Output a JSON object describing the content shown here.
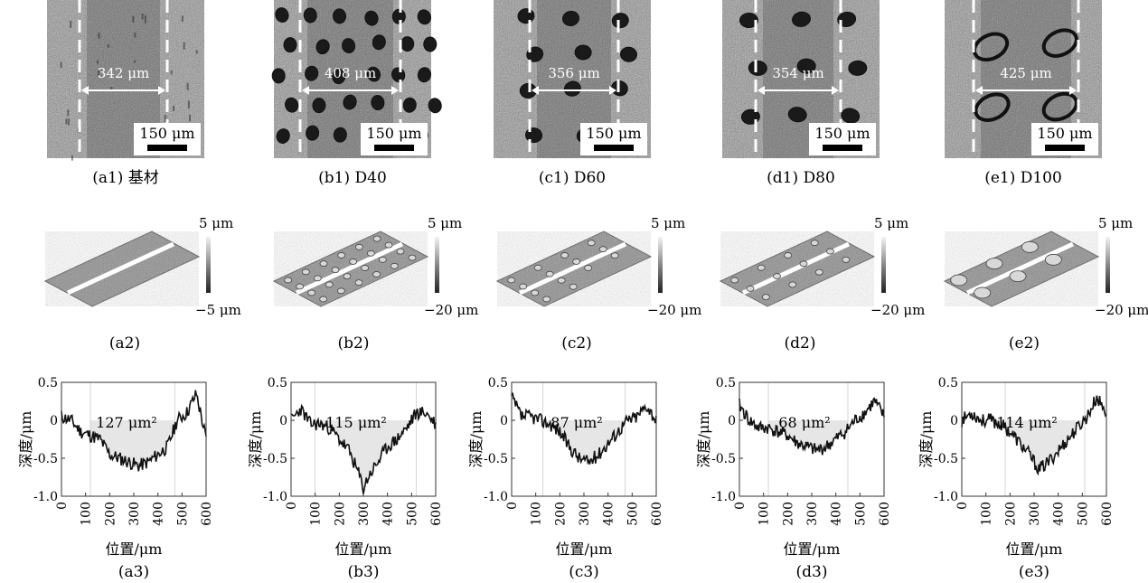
{
  "row1": {
    "scale_label": "150 μm",
    "panels": [
      {
        "caption": "(a1) 基材",
        "width_label": "342 μm",
        "pits": "none"
      },
      {
        "caption": "(b1) D40",
        "width_label": "408 μm",
        "pits": "dense"
      },
      {
        "caption": "(c1) D60",
        "width_label": "356 μm",
        "pits": "medium"
      },
      {
        "caption": "(d1) D80",
        "width_label": "354 μm",
        "pits": "sparse"
      },
      {
        "caption": "(e1) D100",
        "width_label": "425 μm",
        "pits": "large"
      }
    ]
  },
  "row2": {
    "panels": [
      {
        "caption": "(a2)",
        "top": "5 μm",
        "bottom": "−5 μm"
      },
      {
        "caption": "(b2)",
        "top": "5 μm",
        "bottom": "−20 μm"
      },
      {
        "caption": "(c2)",
        "top": "5 μm",
        "bottom": "−20 μm"
      },
      {
        "caption": "(d2)",
        "top": "5 μm",
        "bottom": "−20 μm"
      },
      {
        "caption": "(e2)",
        "top": "5 μm",
        "bottom": "−20 μm"
      }
    ]
  },
  "chart_data": [
    {
      "type": "line",
      "caption": "(a3)",
      "annotation": "127 μm²",
      "xlabel": "位置/μm",
      "ylabel": "深度/μm",
      "xlim": [
        0,
        600
      ],
      "ylim": [
        -1.0,
        0.5
      ],
      "xticks": [
        0,
        100,
        200,
        300,
        400,
        500,
        600
      ],
      "yticks": [
        0.5,
        0,
        -0.5,
        -1.0
      ],
      "fill_range": [
        120,
        470
      ],
      "seed": 11,
      "x": [
        0,
        40,
        80,
        120,
        160,
        200,
        240,
        280,
        320,
        360,
        400,
        440,
        480,
        520,
        560,
        600
      ],
      "y": [
        0.05,
        0.0,
        -0.15,
        -0.2,
        -0.25,
        -0.45,
        -0.5,
        -0.55,
        -0.6,
        -0.55,
        -0.45,
        -0.35,
        0.0,
        0.1,
        0.35,
        -0.25
      ]
    },
    {
      "type": "line",
      "caption": "(b3)",
      "annotation": "115 μm²",
      "xlabel": "位置/μm",
      "ylabel": "深度/μm",
      "xlim": [
        0,
        600
      ],
      "ylim": [
        -1.0,
        0.5
      ],
      "xticks": [
        0,
        100,
        200,
        300,
        400,
        500,
        600
      ],
      "yticks": [
        0.5,
        0,
        -0.5,
        -1.0
      ],
      "fill_range": [
        100,
        520
      ],
      "seed": 23,
      "x": [
        0,
        40,
        80,
        120,
        160,
        200,
        240,
        280,
        300,
        320,
        360,
        400,
        440,
        480,
        520,
        560,
        600
      ],
      "y": [
        0.0,
        0.15,
        -0.05,
        -0.05,
        -0.1,
        -0.25,
        -0.4,
        -0.7,
        -0.9,
        -0.75,
        -0.55,
        -0.35,
        -0.25,
        -0.1,
        0.1,
        0.1,
        -0.05
      ]
    },
    {
      "type": "line",
      "caption": "(c3)",
      "annotation": "87 μm²",
      "xlabel": "位置/μm",
      "ylabel": "深度/μm",
      "xlim": [
        0,
        600
      ],
      "ylim": [
        -1.0,
        0.5
      ],
      "xticks": [
        0,
        100,
        200,
        300,
        400,
        500,
        600
      ],
      "yticks": [
        0.5,
        0,
        -0.5,
        -1.0
      ],
      "fill_range": [
        130,
        470
      ],
      "seed": 37,
      "x": [
        0,
        40,
        80,
        120,
        160,
        200,
        240,
        280,
        320,
        360,
        400,
        440,
        480,
        520,
        560,
        600
      ],
      "y": [
        0.3,
        0.05,
        0.05,
        0.0,
        -0.05,
        -0.15,
        -0.35,
        -0.5,
        -0.55,
        -0.45,
        -0.3,
        -0.15,
        0.0,
        0.05,
        0.2,
        0.0
      ]
    },
    {
      "type": "line",
      "caption": "(d3)",
      "annotation": "68 μm²",
      "xlabel": "位置/μm",
      "ylabel": "深度/μm",
      "xlim": [
        0,
        600
      ],
      "ylim": [
        -1.0,
        0.5
      ],
      "xticks": [
        0,
        100,
        200,
        300,
        400,
        500,
        600
      ],
      "yticks": [
        0.5,
        0,
        -0.5,
        -1.0
      ],
      "fill_range": [
        120,
        450
      ],
      "seed": 41,
      "x": [
        0,
        40,
        80,
        120,
        160,
        200,
        240,
        280,
        320,
        360,
        400,
        440,
        480,
        520,
        560,
        600
      ],
      "y": [
        0.2,
        0.0,
        -0.1,
        -0.1,
        -0.15,
        -0.2,
        -0.3,
        -0.35,
        -0.4,
        -0.35,
        -0.25,
        -0.15,
        0.0,
        0.1,
        0.25,
        0.05
      ]
    },
    {
      "type": "line",
      "caption": "(e3)",
      "annotation": "114 μm²",
      "xlabel": "位置/μm",
      "ylabel": "深度/μm",
      "xlim": [
        0,
        600
      ],
      "ylim": [
        -1.0,
        0.5
      ],
      "xticks": [
        0,
        100,
        200,
        300,
        400,
        500,
        600
      ],
      "yticks": [
        0.5,
        0,
        -0.5,
        -1.0
      ],
      "fill_range": [
        180,
        510
      ],
      "seed": 53,
      "x": [
        0,
        40,
        80,
        120,
        160,
        200,
        240,
        280,
        320,
        360,
        400,
        440,
        480,
        520,
        560,
        600
      ],
      "y": [
        0.0,
        0.1,
        0.0,
        0.0,
        -0.05,
        -0.15,
        -0.3,
        -0.45,
        -0.65,
        -0.55,
        -0.4,
        -0.25,
        -0.1,
        0.05,
        0.3,
        0.1
      ]
    }
  ]
}
